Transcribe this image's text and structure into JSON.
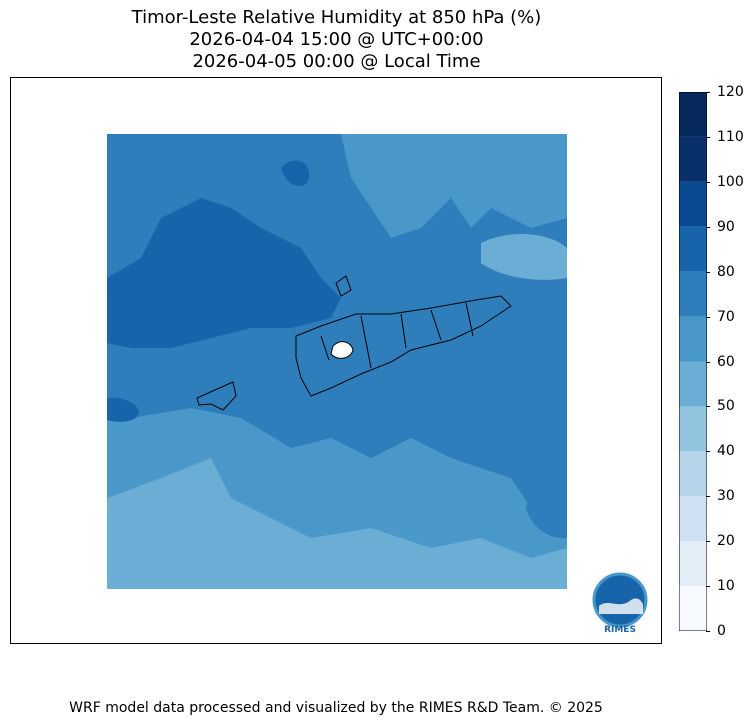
{
  "header": {
    "title": "Timor-Leste Relative Humidity at 850 hPa (%)",
    "utc_time": "2026-04-04 15:00 @ UTC+00:00",
    "local_time": "2026-04-05 00:00 @ Local Time"
  },
  "colorbar": {
    "ticks": [
      "0",
      "10",
      "20",
      "30",
      "40",
      "50",
      "60",
      "70",
      "80",
      "90",
      "100",
      "110",
      "120"
    ],
    "colors": [
      "#f7fbff",
      "#e3eef9",
      "#cfe1f2",
      "#b5d4e9",
      "#93c4df",
      "#6aadd5",
      "#4a98c9",
      "#2e7ebc",
      "#1764ab",
      "#084a91",
      "#08306b",
      "#062a5e"
    ]
  },
  "logo": {
    "text": "RIMES"
  },
  "footer": {
    "credit": "WRF model data processed and visualized by the RIMES R&D Team. © 2025"
  }
}
